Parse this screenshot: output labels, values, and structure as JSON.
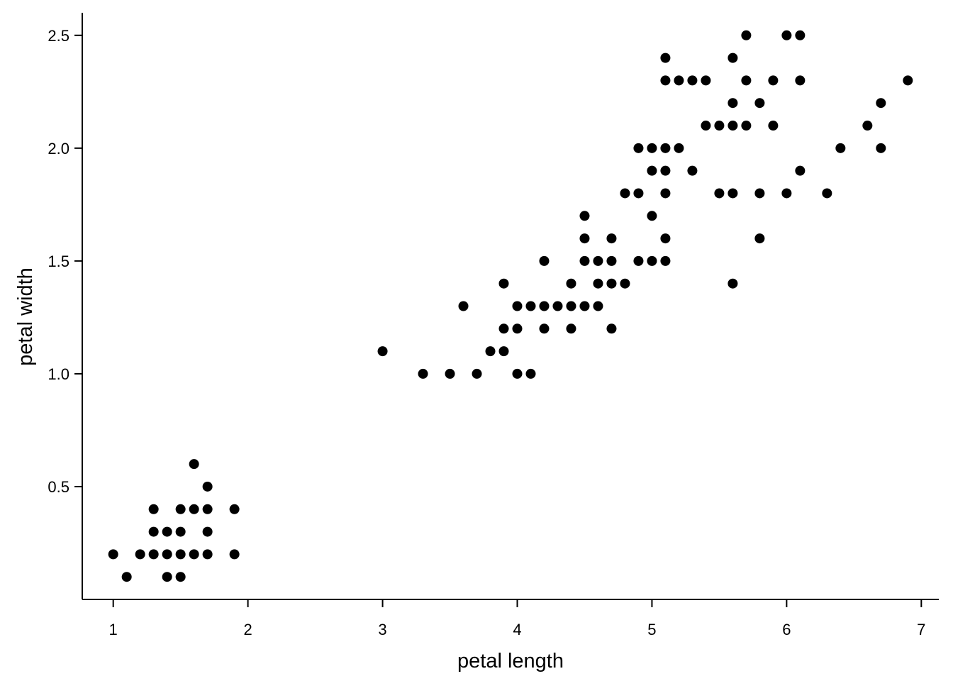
{
  "chart_data": {
    "type": "scatter",
    "title": "",
    "xlabel": "petal length",
    "ylabel": "petal width",
    "xlim": [
      0.77,
      7.13
    ],
    "ylim": [
      0.0,
      2.6
    ],
    "xticks": [
      1,
      2,
      3,
      4,
      5,
      6,
      7
    ],
    "xtick_labels": [
      "1",
      "2",
      "3",
      "4",
      "5",
      "6",
      "7"
    ],
    "yticks": [
      0.5,
      1.0,
      1.5,
      2.0,
      2.5
    ],
    "ytick_labels": [
      "0.5",
      "1.0",
      "1.5",
      "2.0",
      "2.5"
    ],
    "grid": false,
    "legend": "none",
    "marker_color": "#000000",
    "points": [
      [
        1.0,
        0.2
      ],
      [
        1.1,
        0.1
      ],
      [
        1.2,
        0.2
      ],
      [
        1.3,
        0.2
      ],
      [
        1.3,
        0.3
      ],
      [
        1.3,
        0.4
      ],
      [
        1.4,
        0.1
      ],
      [
        1.4,
        0.2
      ],
      [
        1.4,
        0.3
      ],
      [
        1.5,
        0.1
      ],
      [
        1.5,
        0.2
      ],
      [
        1.5,
        0.3
      ],
      [
        1.5,
        0.4
      ],
      [
        1.6,
        0.2
      ],
      [
        1.6,
        0.4
      ],
      [
        1.6,
        0.6
      ],
      [
        1.7,
        0.2
      ],
      [
        1.7,
        0.3
      ],
      [
        1.7,
        0.4
      ],
      [
        1.7,
        0.5
      ],
      [
        1.9,
        0.2
      ],
      [
        1.9,
        0.4
      ],
      [
        3.0,
        1.1
      ],
      [
        3.3,
        1.0
      ],
      [
        3.5,
        1.0
      ],
      [
        3.6,
        1.3
      ],
      [
        3.7,
        1.0
      ],
      [
        3.8,
        1.1
      ],
      [
        3.9,
        1.1
      ],
      [
        3.9,
        1.2
      ],
      [
        3.9,
        1.4
      ],
      [
        4.0,
        1.0
      ],
      [
        4.0,
        1.2
      ],
      [
        4.0,
        1.3
      ],
      [
        4.1,
        1.0
      ],
      [
        4.1,
        1.3
      ],
      [
        4.2,
        1.2
      ],
      [
        4.2,
        1.3
      ],
      [
        4.2,
        1.5
      ],
      [
        4.3,
        1.3
      ],
      [
        4.4,
        1.2
      ],
      [
        4.4,
        1.3
      ],
      [
        4.4,
        1.4
      ],
      [
        4.5,
        1.3
      ],
      [
        4.5,
        1.5
      ],
      [
        4.5,
        1.6
      ],
      [
        4.5,
        1.7
      ],
      [
        4.6,
        1.3
      ],
      [
        4.6,
        1.4
      ],
      [
        4.6,
        1.5
      ],
      [
        4.7,
        1.2
      ],
      [
        4.7,
        1.4
      ],
      [
        4.7,
        1.5
      ],
      [
        4.7,
        1.6
      ],
      [
        4.8,
        1.4
      ],
      [
        4.8,
        1.8
      ],
      [
        4.9,
        1.5
      ],
      [
        4.9,
        1.8
      ],
      [
        4.9,
        2.0
      ],
      [
        5.0,
        1.5
      ],
      [
        5.0,
        1.7
      ],
      [
        5.0,
        1.9
      ],
      [
        5.0,
        2.0
      ],
      [
        5.1,
        1.5
      ],
      [
        5.1,
        1.6
      ],
      [
        5.1,
        1.8
      ],
      [
        5.1,
        1.9
      ],
      [
        5.1,
        2.0
      ],
      [
        5.1,
        2.3
      ],
      [
        5.1,
        2.4
      ],
      [
        5.2,
        2.0
      ],
      [
        5.2,
        2.3
      ],
      [
        5.3,
        1.9
      ],
      [
        5.3,
        2.3
      ],
      [
        5.4,
        2.1
      ],
      [
        5.4,
        2.3
      ],
      [
        5.5,
        1.8
      ],
      [
        5.5,
        2.1
      ],
      [
        5.6,
        1.4
      ],
      [
        5.6,
        1.8
      ],
      [
        5.6,
        2.1
      ],
      [
        5.6,
        2.2
      ],
      [
        5.6,
        2.4
      ],
      [
        5.7,
        2.1
      ],
      [
        5.7,
        2.3
      ],
      [
        5.7,
        2.5
      ],
      [
        5.8,
        1.6
      ],
      [
        5.8,
        1.8
      ],
      [
        5.8,
        2.2
      ],
      [
        5.9,
        2.1
      ],
      [
        5.9,
        2.3
      ],
      [
        6.0,
        1.8
      ],
      [
        6.0,
        2.5
      ],
      [
        6.1,
        1.9
      ],
      [
        6.1,
        2.3
      ],
      [
        6.1,
        2.5
      ],
      [
        6.3,
        1.8
      ],
      [
        6.4,
        2.0
      ],
      [
        6.6,
        2.1
      ],
      [
        6.7,
        2.0
      ],
      [
        6.7,
        2.2
      ],
      [
        6.9,
        2.3
      ]
    ]
  }
}
